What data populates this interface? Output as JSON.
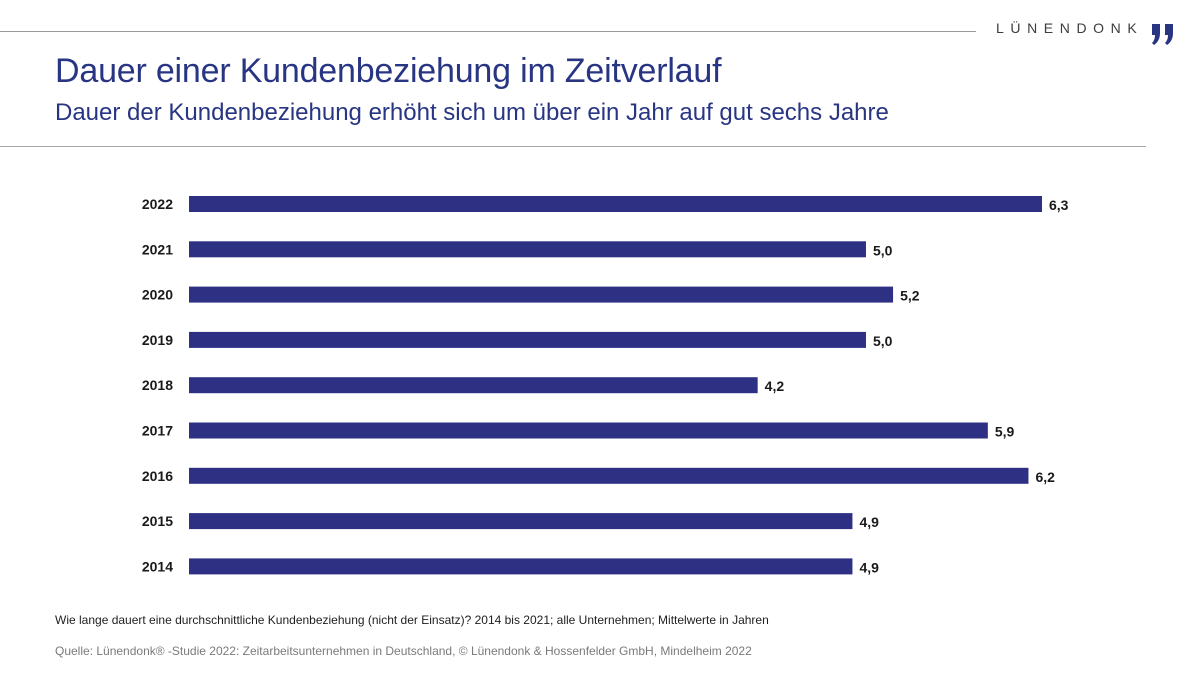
{
  "header": {
    "brand": "LÜNENDONK",
    "title": "Dauer einer Kundenbeziehung im Zeitverlauf",
    "subtitle": "Dauer der Kundenbeziehung erhöht sich um über ein Jahr auf gut sechs Jahre"
  },
  "footer": {
    "note": "Wie lange dauert eine durchschnittliche Kundenbeziehung (nicht der Einsatz)? 2014 bis 2021; alle Unternehmen; Mittelwerte in Jahren",
    "source": "Quelle: Lünendonk® -Studie 2022: Zeitarbeitsunternehmen in Deutschland, © Lünendonk & Hossenfelder GmbH, Mindelheim 2022"
  },
  "colors": {
    "bar": "#2e3183",
    "title": "#283583",
    "brand": "#283583"
  },
  "chart_data": {
    "type": "bar",
    "orientation": "horizontal",
    "categories": [
      "2022",
      "2021",
      "2020",
      "2019",
      "2018",
      "2017",
      "2016",
      "2015",
      "2014"
    ],
    "values": [
      6.3,
      5.0,
      5.2,
      5.0,
      4.2,
      5.9,
      6.2,
      4.9,
      4.9
    ],
    "value_labels": [
      "6,3",
      "5,0",
      "5,2",
      "5,0",
      "4,2",
      "5,9",
      "6,2",
      "4,9",
      "4,9"
    ],
    "title": "Dauer einer Kundenbeziehung im Zeitverlauf",
    "xlabel": "",
    "ylabel": "",
    "xlim": [
      0,
      6.3
    ],
    "grid": false,
    "legend": "none"
  }
}
